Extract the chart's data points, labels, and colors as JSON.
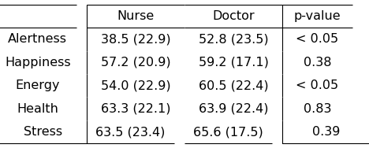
{
  "rows": [
    "Alertness",
    "Happiness",
    "Energy",
    "Health",
    "Stress"
  ],
  "col_headers": [
    "",
    "Nurse",
    "Doctor",
    "p-value"
  ],
  "nurse_values": [
    "38.5 (22.9)",
    "57.2 (20.9)",
    "54.0 (22.9)",
    "63.3 (22.1)",
    "63.5 (23.4)"
  ],
  "doctor_values": [
    "52.8 (23.5)",
    "59.2 (17.1)",
    "60.5 (22.4)",
    "63.9 (22.4)",
    "65.6 (17.5)"
  ],
  "pvalues": [
    "< 0.05",
    "0.38",
    "< 0.05",
    "0.83",
    "0.39"
  ],
  "background_color": "#ffffff",
  "font_size": 11.5
}
